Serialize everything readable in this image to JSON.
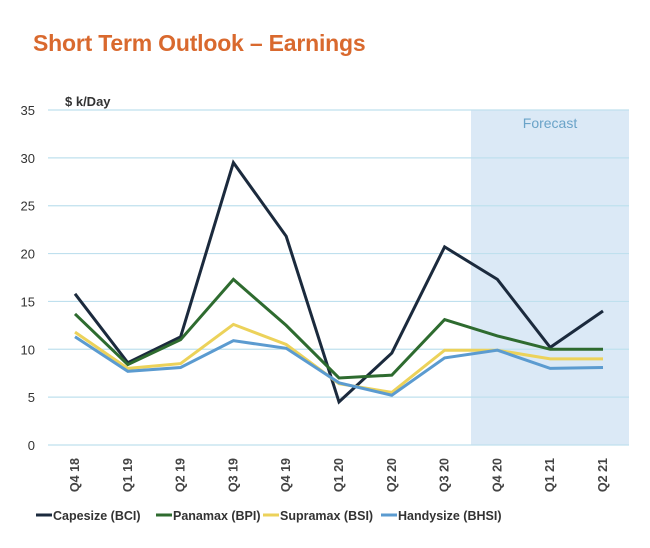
{
  "chart_data": {
    "type": "line",
    "title": "Short Term Outlook – Earnings",
    "ylabel": "$ k/Day",
    "xlabel": "",
    "ylim": [
      0,
      35
    ],
    "yticks": [
      "0",
      "5",
      "10",
      "15",
      "20",
      "25",
      "30",
      "35"
    ],
    "ytick_values": [
      0,
      5,
      10,
      15,
      20,
      25,
      30,
      35
    ],
    "grid": true,
    "legend_position": "bottom",
    "categories": [
      "Q4 18",
      "Q1 19",
      "Q2 19",
      "Q3 19",
      "Q4 19",
      "Q1 20",
      "Q2 20",
      "Q3 20",
      "Q4 20",
      "Q1 21",
      "Q2 21"
    ],
    "forecast": {
      "label": "Forecast",
      "from_category": "Q4 20",
      "to_category": "Q2 21",
      "color": "#dbe9f6"
    },
    "series": [
      {
        "name": "Capesize (BCI)",
        "color": "#1b2a3d",
        "values": [
          15.8,
          8.6,
          11.3,
          29.5,
          21.8,
          4.5,
          9.6,
          20.7,
          17.3,
          10.2,
          14.0
        ]
      },
      {
        "name": "Panamax (BPI)",
        "color": "#2e6b2f",
        "values": [
          13.7,
          8.4,
          11.0,
          17.3,
          12.5,
          7.0,
          7.3,
          13.1,
          11.4,
          10.0,
          10.0
        ]
      },
      {
        "name": "Supramax (BSI)",
        "color": "#ecd25a",
        "values": [
          11.8,
          8.0,
          8.5,
          12.6,
          10.5,
          6.4,
          5.5,
          9.9,
          9.9,
          9.0,
          9.0
        ]
      },
      {
        "name": "Handysize (BHSI)",
        "color": "#5b9bd0",
        "values": [
          11.3,
          7.7,
          8.1,
          10.9,
          10.1,
          6.5,
          5.2,
          9.1,
          9.9,
          8.0,
          8.1
        ]
      }
    ],
    "gridline_color": "#bfe0ee",
    "title_color": "#d9692e"
  }
}
